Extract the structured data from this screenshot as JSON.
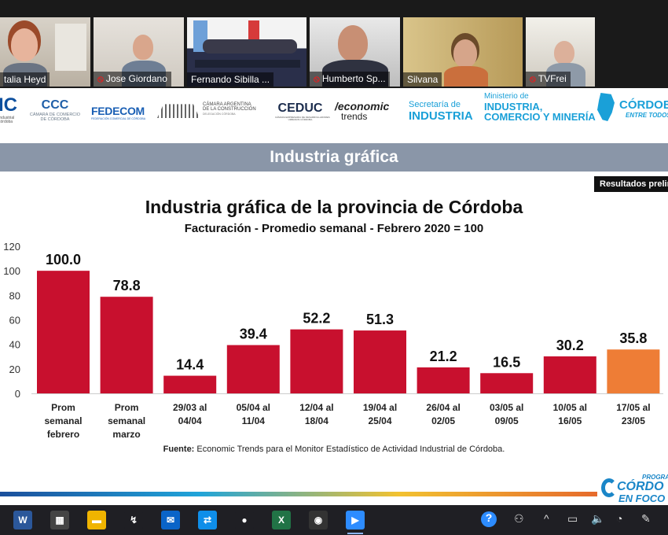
{
  "participants": [
    {
      "name": "talia Heyd",
      "muted": false
    },
    {
      "name": "Jose Giordano",
      "muted": true
    },
    {
      "name": "Fernando Sibilla ...",
      "muted": false,
      "active": true
    },
    {
      "name": "Humberto Sp...",
      "muted": true
    },
    {
      "name": "Silvana",
      "muted": false
    },
    {
      "name": "TVFrei",
      "muted": true
    }
  ],
  "sponsors": {
    "uic": {
      "name": "IC",
      "sub": "Industrial\ncórdoba"
    },
    "ccc": {
      "name": "CCC",
      "sub": "CÁMARA DE COMERCIO\nDE CÓRDOBA"
    },
    "fedecom": {
      "name": "FEDECOM",
      "sub": "FEDERACIÓN COMERCIAL DE CÓRDOBA"
    },
    "camara_construccion": {
      "name": "CÁMARA ARGENTINA\nDE LA CONSTRUCCIÓN",
      "sub": "DELEGACIÓN CÓRDOBA"
    },
    "ceduc": {
      "name": "CEDUC",
      "sub": "CÁMARA EMPRESARIA DE DESARROLLADORES\nURBANOS CÓRDOBA"
    },
    "economic_trends": {
      "line1": "economic",
      "line2": "trends"
    },
    "secretaria": {
      "line1": "Secretaría de",
      "line2": "INDUSTRIA"
    },
    "ministerio": {
      "line1": "Ministerio de",
      "line2": "INDUSTRIA,",
      "line3": "COMERCIO Y MINERÍA"
    },
    "cordoba": {
      "line1": "CÓRDOB",
      "line2": "ENTRE TODOS"
    }
  },
  "slide": {
    "header": "Industria gráfica",
    "badge": "Resultados prelim",
    "source_label": "Fuente:",
    "source_text": " Economic Trends para el Monitor Estadístico de Actividad Industrial de Córdoba."
  },
  "chart_data": {
    "type": "bar",
    "title": "Industria gráfica de la provincia de Córdoba",
    "subtitle": "Facturación - Promedio semanal - Febrero 2020 = 100",
    "categories": [
      [
        "Prom",
        "semanal",
        "febrero"
      ],
      [
        "Prom",
        "semanal",
        "marzo"
      ],
      [
        "29/03 al",
        "04/04"
      ],
      [
        "05/04 al",
        "11/04"
      ],
      [
        "12/04 al",
        "18/04"
      ],
      [
        "19/04 al",
        "25/04"
      ],
      [
        "26/04 al",
        "02/05"
      ],
      [
        "03/05 al",
        "09/05"
      ],
      [
        "10/05 al",
        "16/05"
      ],
      [
        "17/05 al",
        "23/05"
      ]
    ],
    "values": [
      100.0,
      78.8,
      14.4,
      39.4,
      52.2,
      51.3,
      21.2,
      16.5,
      30.2,
      35.8
    ],
    "value_labels": [
      "100.0",
      "78.8",
      "14.4",
      "39.4",
      "52.2",
      "51.3",
      "21.2",
      "16.5",
      "30.2",
      "35.8"
    ],
    "highlight_index": 9,
    "colors": {
      "bar": "#c8102e",
      "highlight": "#ee7d36",
      "axis": "#cccccc"
    },
    "ylim": [
      0,
      120
    ],
    "yticks": [
      0,
      20,
      40,
      60,
      80,
      100,
      120
    ],
    "grid": false
  },
  "footer": {
    "line1": "PROGRA",
    "line2": "CÓRDO",
    "line3": "EN FOCO"
  },
  "taskbar": {
    "apps": [
      {
        "name": "word-icon",
        "glyph": "W",
        "color": "#2b579a"
      },
      {
        "name": "store-icon",
        "glyph": "▦",
        "color": "#444"
      },
      {
        "name": "file-explorer-icon",
        "glyph": "▬",
        "color": "#f0b400"
      },
      {
        "name": "app-arrow-icon",
        "glyph": "↯",
        "color": "#1f1f24"
      },
      {
        "name": "mail-icon",
        "glyph": "✉",
        "color": "#0a64c8"
      },
      {
        "name": "teamviewer-icon",
        "glyph": "⇄",
        "color": "#0e8ee9"
      },
      {
        "name": "chrome-icon",
        "glyph": "●",
        "color": "#1f1f24"
      },
      {
        "name": "excel-icon",
        "glyph": "X",
        "color": "#217346"
      },
      {
        "name": "camera-icon",
        "glyph": "◉",
        "color": "#333"
      },
      {
        "name": "zoom-icon",
        "glyph": "▶",
        "color": "#2d8cff"
      }
    ],
    "tray": [
      "?",
      "⚇",
      "^",
      "▭",
      "🔈",
      "◔",
      "✎"
    ]
  }
}
